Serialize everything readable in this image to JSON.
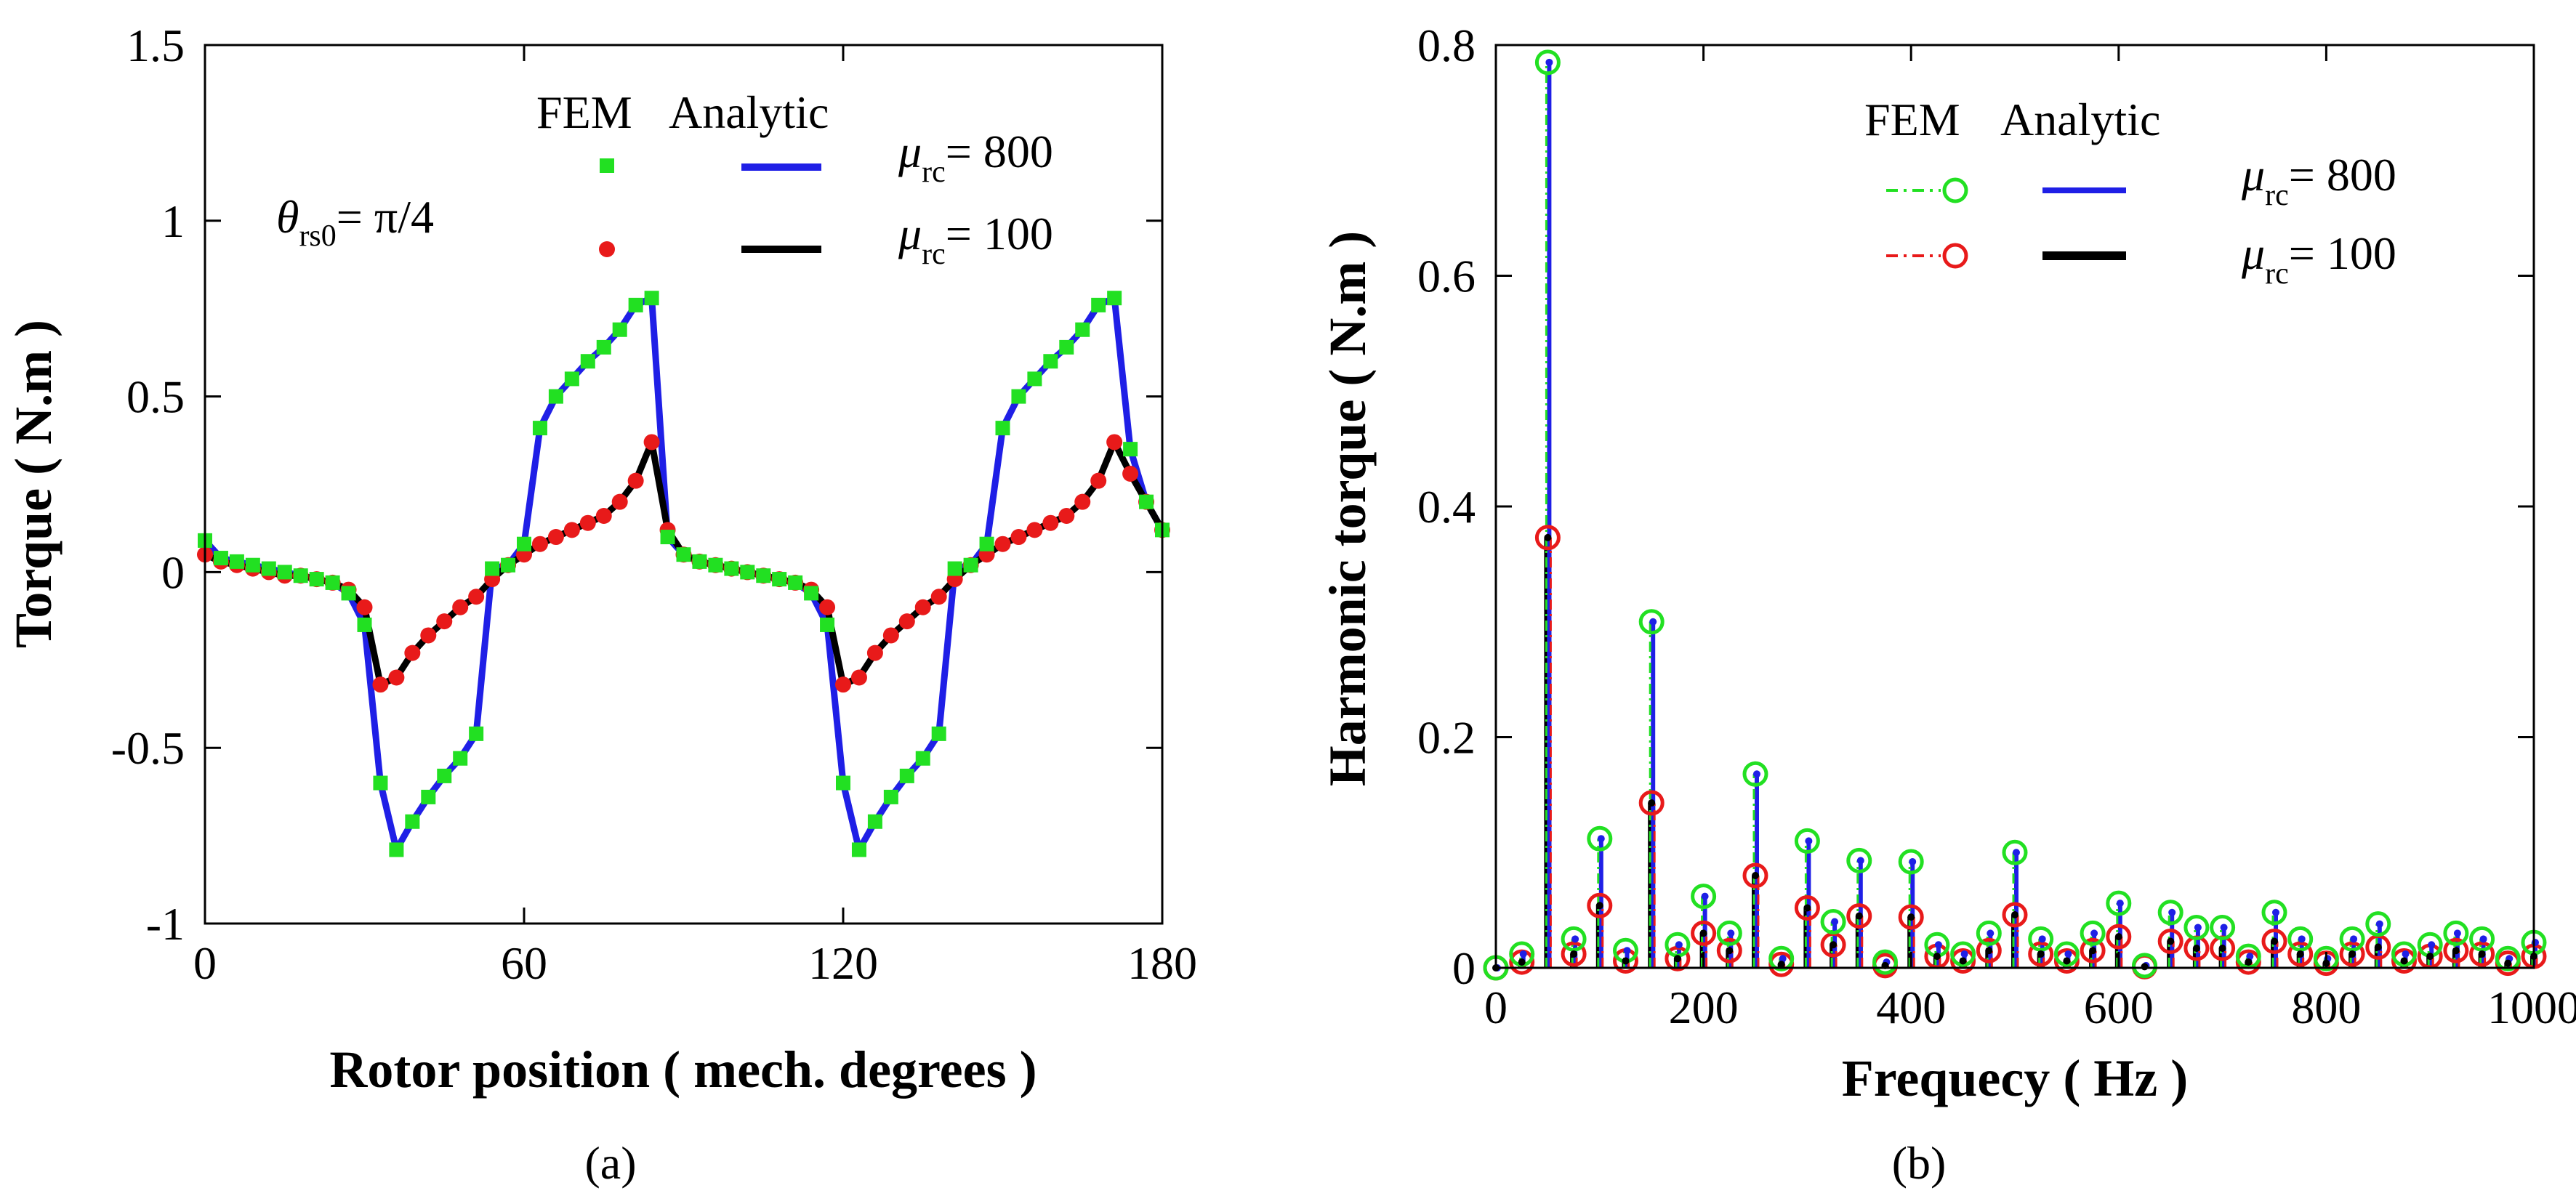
{
  "chart_data": [
    {
      "panel": "(a)",
      "type": "line",
      "xlabel": "Rotor position ( mech. degrees )",
      "ylabel": "Torque ( N.m )",
      "xlim": [
        0,
        180
      ],
      "ylim": [
        -1,
        1.5
      ],
      "xticks": [
        "0",
        "60",
        "120",
        "180"
      ],
      "yticks": [
        "1.5",
        "1",
        "0.5",
        "0",
        "-0.5",
        "-1"
      ],
      "annotation": {
        "symbol": "θ",
        "sub": "rs0",
        "text": "= π/4"
      },
      "legend": {
        "heading_fem": "FEM",
        "heading_analytic": "Analytic",
        "entries": [
          {
            "mu": "μ",
            "sub": "rc",
            "text": "= 800"
          },
          {
            "mu": "μ",
            "sub": "rc",
            "text": "= 100"
          }
        ]
      },
      "series": [
        {
          "name": "μrc = 800",
          "line_color": "#1f1fe6",
          "marker_color": "#22e022",
          "marker": "square",
          "x": [
            0,
            3,
            6,
            9,
            12,
            15,
            18,
            21,
            24,
            27,
            30,
            33,
            36,
            39,
            42,
            45,
            48,
            51,
            54,
            57,
            60,
            63,
            66,
            69,
            72,
            75,
            78,
            81,
            84,
            87,
            90,
            93,
            96,
            99,
            102,
            105,
            108,
            111,
            114,
            117,
            120,
            123,
            126,
            129,
            132,
            135,
            138,
            141,
            144,
            147,
            150,
            153,
            156,
            159,
            162,
            165,
            168,
            171,
            174,
            177,
            180
          ],
          "y": [
            0.09,
            0.04,
            0.03,
            0.02,
            0.01,
            0.0,
            -0.01,
            -0.02,
            -0.03,
            -0.06,
            -0.15,
            -0.6,
            -0.79,
            -0.71,
            -0.64,
            -0.58,
            -0.53,
            -0.46,
            0.01,
            0.02,
            0.08,
            0.41,
            0.5,
            0.55,
            0.6,
            0.64,
            0.69,
            0.76,
            0.78,
            0.1,
            0.05,
            0.03,
            0.02,
            0.01,
            0.0,
            -0.01,
            -0.02,
            -0.03,
            -0.06,
            -0.15,
            -0.6,
            -0.79,
            -0.71,
            -0.64,
            -0.58,
            -0.53,
            -0.46,
            0.01,
            0.02,
            0.08,
            0.41,
            0.5,
            0.55,
            0.6,
            0.64,
            0.69,
            0.76,
            0.78,
            0.35,
            0.2,
            0.12
          ]
        },
        {
          "name": "μrc = 100",
          "line_color": "#000000",
          "marker_color": "#e81a1a",
          "marker": "circle",
          "x": [
            0,
            3,
            6,
            9,
            12,
            15,
            18,
            21,
            24,
            27,
            30,
            33,
            36,
            39,
            42,
            45,
            48,
            51,
            54,
            57,
            60,
            63,
            66,
            69,
            72,
            75,
            78,
            81,
            84,
            87,
            90,
            93,
            96,
            99,
            102,
            105,
            108,
            111,
            114,
            117,
            120,
            123,
            126,
            129,
            132,
            135,
            138,
            141,
            144,
            147,
            150,
            153,
            156,
            159,
            162,
            165,
            168,
            171,
            174,
            177,
            180
          ],
          "y": [
            0.05,
            0.03,
            0.02,
            0.01,
            0.0,
            -0.01,
            -0.01,
            -0.02,
            -0.03,
            -0.05,
            -0.1,
            -0.32,
            -0.3,
            -0.23,
            -0.18,
            -0.14,
            -0.1,
            -0.07,
            -0.02,
            0.02,
            0.05,
            0.08,
            0.1,
            0.12,
            0.14,
            0.16,
            0.2,
            0.26,
            0.37,
            0.12,
            0.05,
            0.03,
            0.02,
            0.01,
            0.0,
            -0.01,
            -0.02,
            -0.03,
            -0.05,
            -0.1,
            -0.32,
            -0.3,
            -0.23,
            -0.18,
            -0.14,
            -0.1,
            -0.07,
            -0.02,
            0.02,
            0.05,
            0.08,
            0.1,
            0.12,
            0.14,
            0.16,
            0.2,
            0.26,
            0.37,
            0.28,
            0.2,
            0.12
          ]
        }
      ]
    },
    {
      "panel": "(b)",
      "type": "stem",
      "xlabel": "Frequecy ( Hz )",
      "ylabel": "Harmonic torque ( N.m )",
      "xlim": [
        0,
        1000
      ],
      "ylim": [
        0,
        0.8
      ],
      "xticks": [
        "0",
        "200",
        "400",
        "600",
        "800",
        "1000"
      ],
      "yticks": [
        "0.8",
        "0.6",
        "0.4",
        "0.2",
        "0"
      ],
      "legend": {
        "heading_fem": "FEM",
        "heading_analytic": "Analytic",
        "entries": [
          {
            "mu": "μ",
            "sub": "rc",
            "text": "= 800"
          },
          {
            "mu": "μ",
            "sub": "rc",
            "text": "= 100"
          }
        ]
      },
      "x": [
        0,
        25,
        50,
        75,
        100,
        125,
        150,
        175,
        200,
        225,
        250,
        275,
        300,
        325,
        350,
        375,
        400,
        425,
        450,
        475,
        500,
        525,
        550,
        575,
        600,
        625,
        650,
        675,
        700,
        725,
        750,
        775,
        800,
        825,
        850,
        875,
        900,
        925,
        950,
        975,
        1000
      ],
      "series": [
        {
          "name": "μrc = 800",
          "fem_color": "#22e022",
          "analytic_color": "#1f1fe6",
          "values": [
            0.0,
            0.012,
            0.785,
            0.025,
            0.112,
            0.015,
            0.3,
            0.02,
            0.062,
            0.03,
            0.168,
            0.008,
            0.11,
            0.04,
            0.093,
            0.005,
            0.092,
            0.02,
            0.012,
            0.03,
            0.1,
            0.025,
            0.012,
            0.03,
            0.056,
            0.002,
            0.048,
            0.035,
            0.035,
            0.01,
            0.048,
            0.025,
            0.008,
            0.025,
            0.038,
            0.012,
            0.02,
            0.03,
            0.025,
            0.008,
            0.022
          ]
        },
        {
          "name": "μrc = 100",
          "fem_color": "#e81a1a",
          "analytic_color": "#000000",
          "values": [
            0.0,
            0.005,
            0.373,
            0.012,
            0.054,
            0.006,
            0.143,
            0.008,
            0.03,
            0.015,
            0.08,
            0.003,
            0.052,
            0.02,
            0.045,
            0.002,
            0.044,
            0.01,
            0.006,
            0.015,
            0.046,
            0.012,
            0.006,
            0.015,
            0.027,
            0.001,
            0.023,
            0.017,
            0.017,
            0.005,
            0.023,
            0.012,
            0.004,
            0.012,
            0.018,
            0.006,
            0.01,
            0.015,
            0.012,
            0.004,
            0.01
          ]
        }
      ]
    }
  ]
}
